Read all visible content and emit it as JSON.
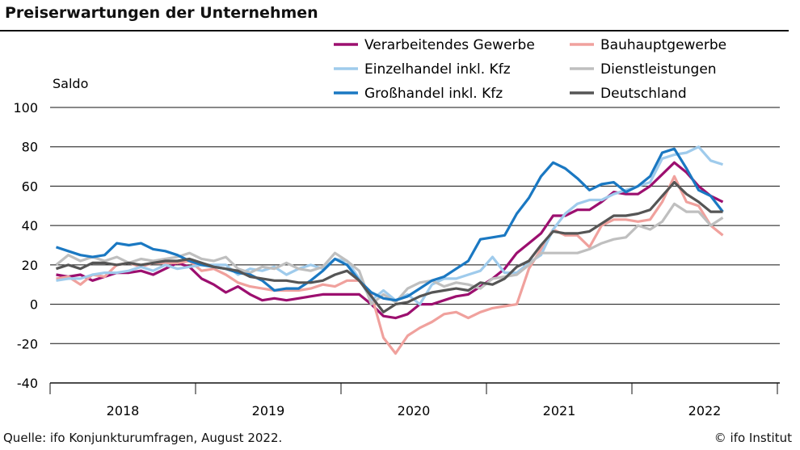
{
  "title": "Preiserwartungen der Unternehmen",
  "footer": {
    "source": "Quelle: ifo Konjunkturumfragen, August 2022.",
    "copyright": "© ifo Institut"
  },
  "chart_data": {
    "type": "line",
    "title": "Preiserwartungen der Unternehmen",
    "ylabel": "Saldo",
    "xlabel": "",
    "ylim": [
      -40,
      100
    ],
    "yticks": [
      -40,
      -20,
      0,
      20,
      40,
      60,
      80,
      100
    ],
    "x_start": "2018-01",
    "x_end": "2022-08",
    "x_tick_labels": [
      "2018",
      "2019",
      "2020",
      "2021",
      "2022"
    ],
    "grid": "horizontal",
    "legend_placement": "top",
    "series": [
      {
        "name": "Verarbeitendes Gewerbe",
        "color": "#9c0f6f",
        "values": [
          15,
          14,
          15,
          12,
          14,
          16,
          16,
          17,
          15,
          18,
          21,
          19,
          13,
          10,
          6,
          9,
          5,
          2,
          3,
          2,
          3,
          4,
          5,
          5,
          5,
          5,
          0,
          -6,
          -7,
          -5,
          0,
          0,
          2,
          4,
          5,
          9,
          13,
          18,
          26,
          31,
          36,
          45,
          45,
          48,
          48,
          52,
          57,
          56,
          56,
          60,
          66,
          72,
          67,
          60,
          55,
          52
        ]
      },
      {
        "name": "Bauhauptgewerbe",
        "color": "#f0a19d",
        "values": [
          13,
          14,
          10,
          15,
          14,
          20,
          21,
          19,
          21,
          21,
          21,
          22,
          17,
          18,
          15,
          11,
          9,
          8,
          7,
          7,
          7,
          8,
          10,
          9,
          12,
          12,
          5,
          -17,
          -25,
          -16,
          -12,
          -9,
          -5,
          -4,
          -7,
          -4,
          -2,
          -1,
          0,
          18,
          28,
          38,
          35,
          35,
          29,
          40,
          43,
          43,
          42,
          43,
          52,
          65,
          52,
          50,
          40,
          35
        ]
      },
      {
        "name": "Einzelhandel inkl. Kfz",
        "color": "#9fcbec",
        "values": [
          12,
          13,
          13,
          15,
          16,
          16,
          17,
          19,
          17,
          20,
          18,
          19,
          20,
          20,
          20,
          15,
          18,
          17,
          19,
          15,
          18,
          20,
          18,
          23,
          22,
          13,
          2,
          7,
          2,
          5,
          0,
          10,
          13,
          13,
          15,
          17,
          24,
          16,
          16,
          21,
          25,
          38,
          46,
          51,
          53,
          53,
          56,
          58,
          60,
          62,
          74,
          76,
          77,
          80,
          73,
          71
        ]
      },
      {
        "name": "Dienstleistungen",
        "color": "#bfbfbf",
        "values": [
          20,
          25,
          22,
          24,
          22,
          24,
          21,
          23,
          22,
          23,
          24,
          26,
          23,
          22,
          24,
          18,
          16,
          19,
          18,
          21,
          18,
          17,
          19,
          26,
          22,
          17,
          0,
          5,
          1,
          8,
          11,
          12,
          9,
          11,
          10,
          8,
          13,
          14,
          15,
          20,
          26,
          26,
          26,
          26,
          28,
          31,
          33,
          34,
          40,
          38,
          42,
          51,
          47,
          47,
          40,
          44
        ]
      },
      {
        "name": "Großhandel inkl. Kfz",
        "color": "#1a78c2",
        "values": [
          29,
          27,
          25,
          24,
          25,
          31,
          30,
          31,
          28,
          27,
          25,
          22,
          20,
          19,
          18,
          16,
          15,
          12,
          7,
          8,
          8,
          12,
          17,
          23,
          20,
          12,
          6,
          3,
          2,
          4,
          8,
          12,
          14,
          18,
          22,
          33,
          34,
          35,
          46,
          54,
          65,
          72,
          69,
          64,
          58,
          61,
          62,
          57,
          60,
          65,
          77,
          79,
          69,
          58,
          55,
          47
        ]
      },
      {
        "name": "Deutschland",
        "color": "#555555",
        "values": [
          18,
          20,
          18,
          21,
          21,
          20,
          21,
          20,
          21,
          22,
          22,
          23,
          21,
          19,
          18,
          17,
          14,
          13,
          12,
          12,
          11,
          11,
          12,
          15,
          17,
          12,
          4,
          -4,
          0,
          1,
          4,
          6,
          7,
          8,
          7,
          11,
          10,
          13,
          19,
          22,
          30,
          37,
          36,
          36,
          37,
          41,
          45,
          45,
          46,
          48,
          55,
          62,
          56,
          52,
          47,
          47
        ]
      }
    ]
  }
}
